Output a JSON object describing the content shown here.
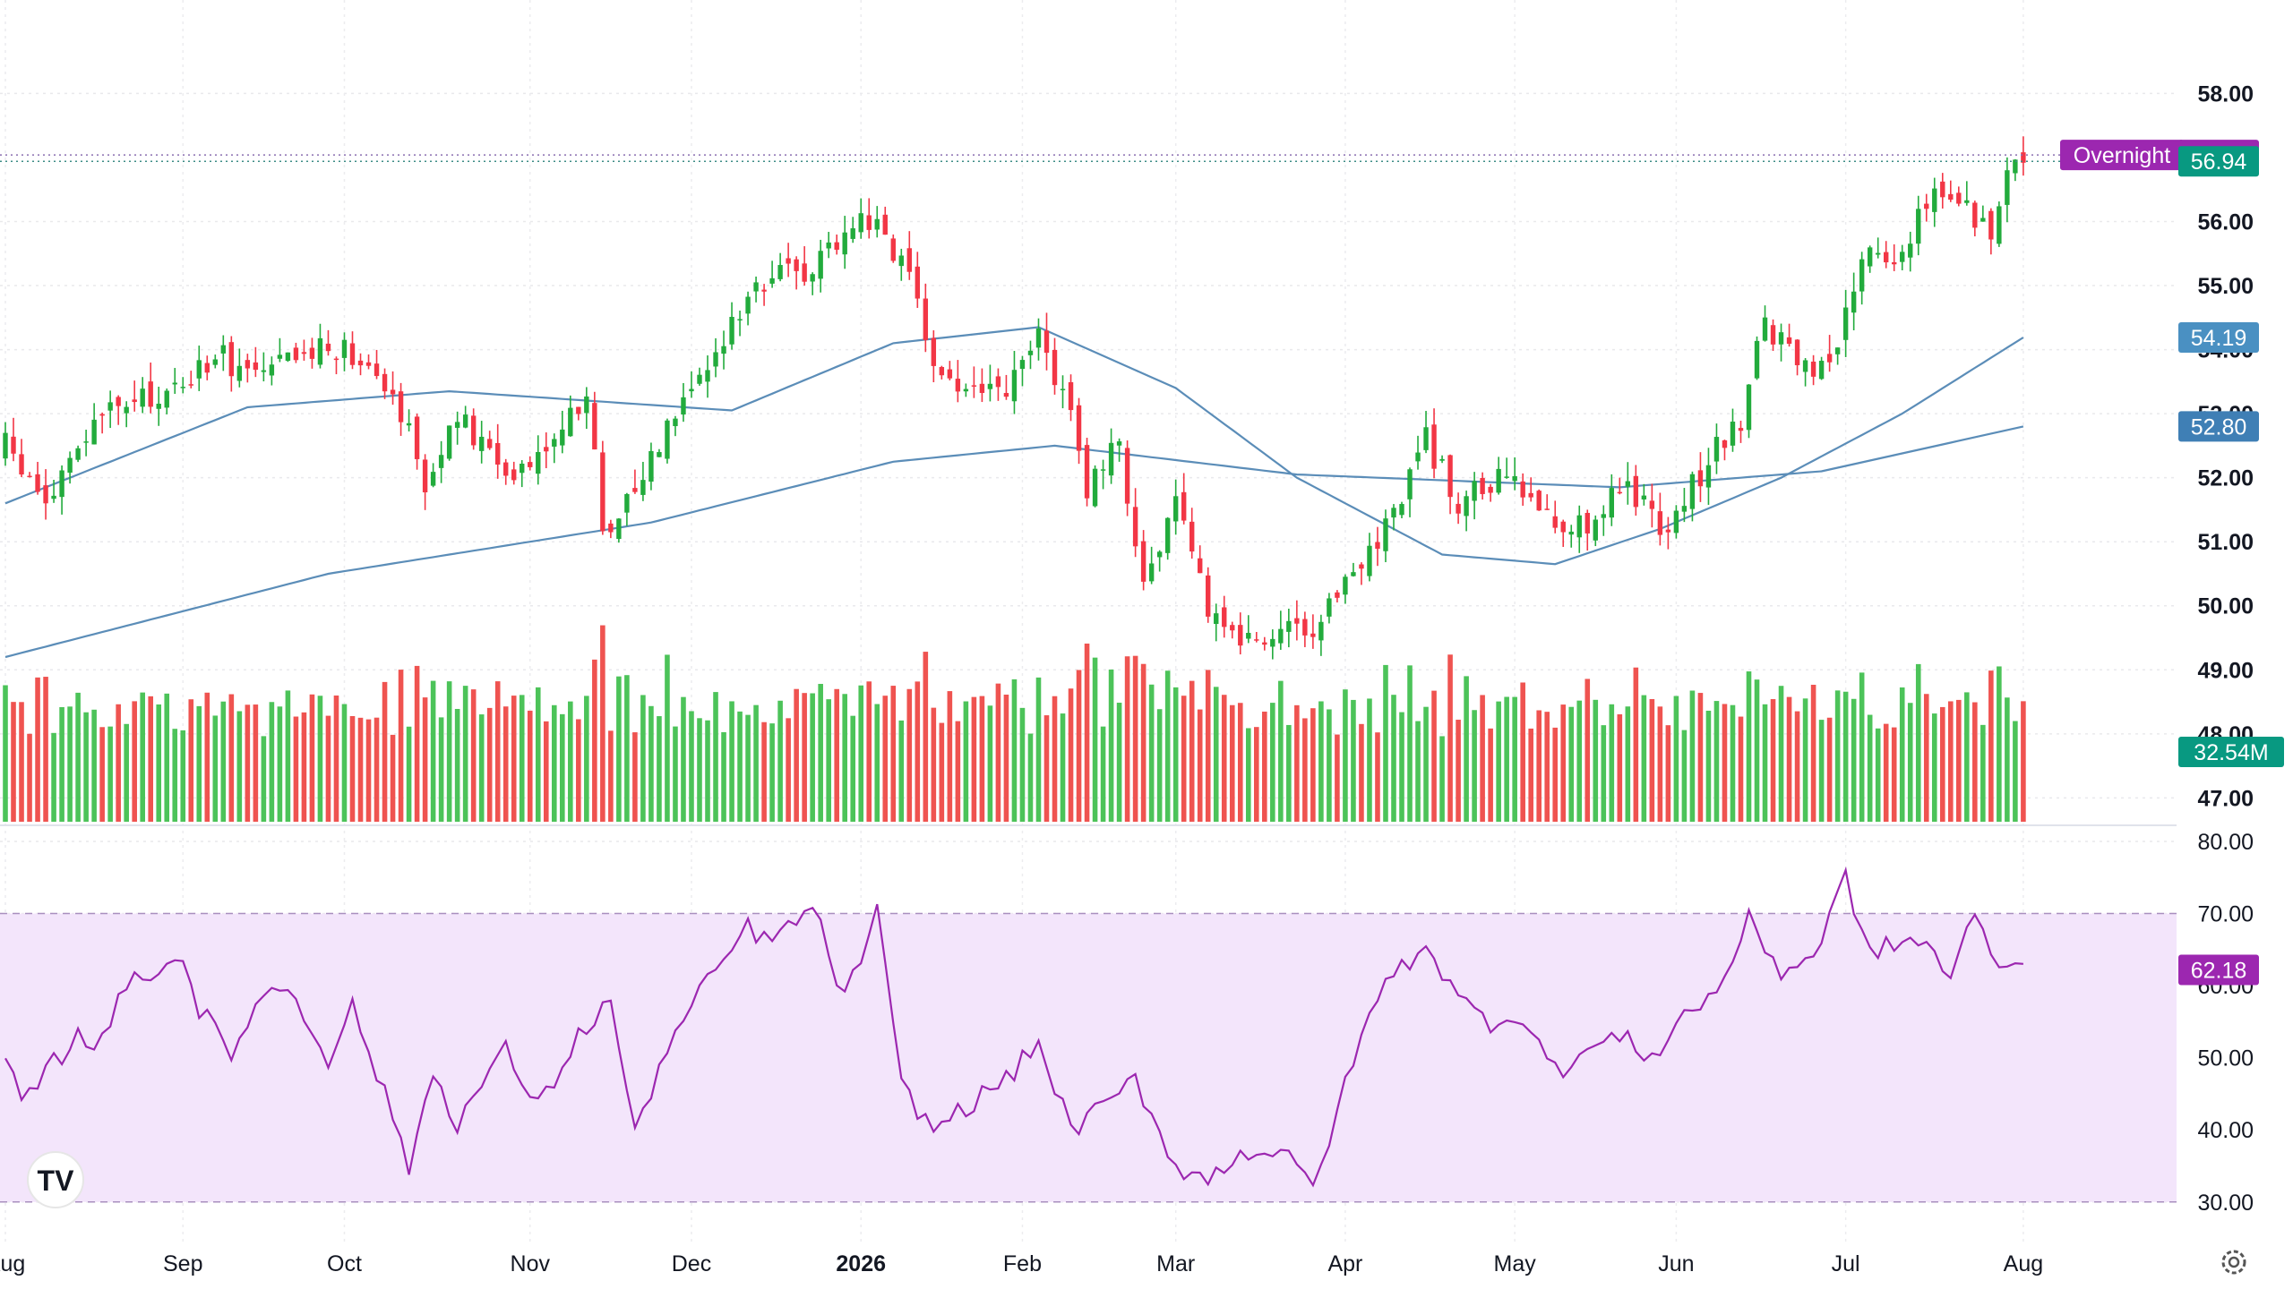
{
  "chart_data": {
    "type": "candlestick",
    "colors": {
      "up": "#22ab3c",
      "down": "#f23645",
      "up_volume": "#4cc359",
      "down_volume": "#ef5350",
      "ma_line": "#5b8db8",
      "rsi_line": "#9c27b0",
      "rsi_band": "#f3e5fb",
      "overnight_badge": "#9c27b0",
      "last_price_badge": "#089981",
      "ma50_badge": "#4a90c2",
      "ma200_badge": "#3f7fb5",
      "volume_badge": "#089981",
      "rsi_badge": "#9c27b0"
    },
    "price_axis": {
      "ylim": [
        46.6,
        58.9
      ],
      "ticks": [
        58,
        56,
        55,
        54,
        53,
        52,
        51,
        50,
        49,
        48,
        47
      ],
      "tick_labels": [
        "58.00",
        "56.00",
        "55.00",
        "54.00",
        "53.00",
        "52.00",
        "51.00",
        "50.00",
        "49.00",
        "48.00",
        "47.00"
      ]
    },
    "rsi_axis": {
      "ylim": [
        26,
        80
      ],
      "ticks": [
        80,
        70,
        60,
        50,
        40,
        30
      ],
      "tick_labels": [
        "80.00",
        "70.00",
        "60.00",
        "50.00",
        "40.00",
        "30.00"
      ],
      "band": [
        30,
        70
      ]
    },
    "x_axis": {
      "days": 260,
      "labels": [
        {
          "text": "Aug",
          "day": 0
        },
        {
          "text": "Sep",
          "day": 22
        },
        {
          "text": "Oct",
          "day": 42
        },
        {
          "text": "Nov",
          "day": 65
        },
        {
          "text": "Dec",
          "day": 85
        },
        {
          "text": "2026",
          "day": 106
        },
        {
          "text": "Feb",
          "day": 126
        },
        {
          "text": "Mar",
          "day": 145
        },
        {
          "text": "Apr",
          "day": 166
        },
        {
          "text": "May",
          "day": 187
        },
        {
          "text": "Jun",
          "day": 207
        },
        {
          "text": "Jul",
          "day": 228
        },
        {
          "text": "Aug",
          "day": 250
        }
      ]
    },
    "badges": {
      "overnight_label": "Overnight",
      "overnight_price": "57.04",
      "overnight_value": 57.04,
      "last_price": "56.94",
      "last_value": 56.94,
      "ma50": "54.19",
      "ma50_value": 54.19,
      "ma200": "52.80",
      "ma200_value": 52.8,
      "volume": "32.54M",
      "rsi": "62.18",
      "rsi_value": 62.18
    },
    "close_anchors": [
      [
        0,
        52.5
      ],
      [
        5,
        51.6
      ],
      [
        12,
        53.0
      ],
      [
        20,
        53.3
      ],
      [
        26,
        53.9
      ],
      [
        32,
        53.6
      ],
      [
        40,
        54.1
      ],
      [
        46,
        53.8
      ],
      [
        50,
        52.8
      ],
      [
        52,
        51.9
      ],
      [
        56,
        52.9
      ],
      [
        62,
        52.1
      ],
      [
        66,
        52.4
      ],
      [
        72,
        53.3
      ],
      [
        74,
        51.2
      ],
      [
        78,
        51.8
      ],
      [
        84,
        53.4
      ],
      [
        88,
        53.8
      ],
      [
        92,
        55.0
      ],
      [
        100,
        55.3
      ],
      [
        104,
        55.9
      ],
      [
        108,
        56.1
      ],
      [
        112,
        55.0
      ],
      [
        115,
        53.8
      ],
      [
        118,
        53.4
      ],
      [
        124,
        53.3
      ],
      [
        128,
        54.2
      ],
      [
        132,
        53.1
      ],
      [
        134,
        51.8
      ],
      [
        138,
        52.5
      ],
      [
        141,
        50.4
      ],
      [
        145,
        51.5
      ],
      [
        149,
        50.0
      ],
      [
        154,
        49.4
      ],
      [
        158,
        49.7
      ],
      [
        162,
        49.3
      ],
      [
        166,
        50.5
      ],
      [
        170,
        51.0
      ],
      [
        176,
        52.6
      ],
      [
        180,
        51.6
      ],
      [
        186,
        52.0
      ],
      [
        192,
        51.3
      ],
      [
        196,
        51.3
      ],
      [
        200,
        51.9
      ],
      [
        206,
        51.2
      ],
      [
        211,
        52.3
      ],
      [
        215,
        52.9
      ],
      [
        218,
        54.5
      ],
      [
        222,
        53.7
      ],
      [
        226,
        53.6
      ],
      [
        230,
        55.5
      ],
      [
        234,
        55.3
      ],
      [
        238,
        56.4
      ],
      [
        241,
        56.4
      ],
      [
        244,
        56.1
      ],
      [
        246,
        55.9
      ],
      [
        248,
        56.7
      ],
      [
        250,
        56.94
      ]
    ],
    "ma50_anchors": [
      [
        0,
        51.6
      ],
      [
        30,
        53.1
      ],
      [
        55,
        53.35
      ],
      [
        90,
        53.05
      ],
      [
        110,
        54.1
      ],
      [
        128,
        54.35
      ],
      [
        145,
        53.4
      ],
      [
        160,
        52.0
      ],
      [
        178,
        50.8
      ],
      [
        192,
        50.65
      ],
      [
        205,
        51.2
      ],
      [
        220,
        52.0
      ],
      [
        235,
        53.0
      ],
      [
        250,
        54.19
      ]
    ],
    "ma200_anchors": [
      [
        0,
        49.2
      ],
      [
        40,
        50.5
      ],
      [
        80,
        51.3
      ],
      [
        110,
        52.25
      ],
      [
        130,
        52.5
      ],
      [
        160,
        52.05
      ],
      [
        200,
        51.85
      ],
      [
        225,
        52.1
      ],
      [
        250,
        52.8
      ]
    ],
    "rsi_anchors": [
      [
        0,
        50
      ],
      [
        2,
        43
      ],
      [
        5,
        48
      ],
      [
        9,
        53
      ],
      [
        11,
        52
      ],
      [
        16,
        61
      ],
      [
        22,
        64
      ],
      [
        24,
        57
      ],
      [
        28,
        50
      ],
      [
        31,
        58
      ],
      [
        35,
        60
      ],
      [
        40,
        50
      ],
      [
        43,
        57
      ],
      [
        46,
        48
      ],
      [
        50,
        35
      ],
      [
        53,
        48
      ],
      [
        56,
        41
      ],
      [
        60,
        48
      ],
      [
        62,
        51
      ],
      [
        66,
        43
      ],
      [
        71,
        53
      ],
      [
        75,
        58
      ],
      [
        78,
        39
      ],
      [
        81,
        49
      ],
      [
        85,
        57
      ],
      [
        88,
        62
      ],
      [
        92,
        68
      ],
      [
        95,
        66
      ],
      [
        100,
        71
      ],
      [
        104,
        58
      ],
      [
        108,
        70
      ],
      [
        111,
        46
      ],
      [
        115,
        40
      ],
      [
        120,
        44
      ],
      [
        124,
        47
      ],
      [
        128,
        52
      ],
      [
        132,
        40
      ],
      [
        136,
        43
      ],
      [
        140,
        47
      ],
      [
        145,
        35
      ],
      [
        149,
        33
      ],
      [
        153,
        37
      ],
      [
        158,
        37
      ],
      [
        162,
        32
      ],
      [
        166,
        46
      ],
      [
        170,
        59
      ],
      [
        176,
        66
      ],
      [
        180,
        58
      ],
      [
        184,
        55
      ],
      [
        188,
        56
      ],
      [
        192,
        48
      ],
      [
        196,
        51
      ],
      [
        200,
        53
      ],
      [
        204,
        50
      ],
      [
        208,
        56
      ],
      [
        212,
        59
      ],
      [
        216,
        69
      ],
      [
        220,
        62
      ],
      [
        224,
        64
      ],
      [
        228,
        75
      ],
      [
        231,
        64
      ],
      [
        234,
        66
      ],
      [
        238,
        66
      ],
      [
        241,
        61
      ],
      [
        244,
        70
      ],
      [
        246,
        64
      ],
      [
        250,
        62.18
      ]
    ],
    "volume_base": 16000000,
    "volume_axis_max": 38000000
  }
}
